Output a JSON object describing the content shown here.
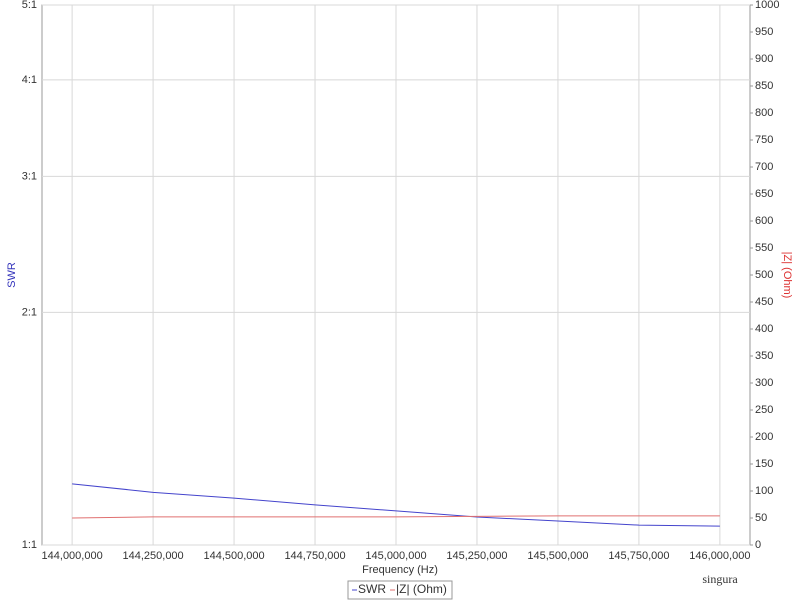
{
  "chart_data": {
    "type": "line",
    "x_label": "Frequency (Hz)",
    "y_label": "SWR",
    "y2_label": "|Z| (Ohm)",
    "x": [
      144000000,
      144250000,
      144500000,
      144750000,
      145000000,
      145250000,
      145500000,
      145750000,
      146000000
    ],
    "xlim": [
      143907000,
      146093000
    ],
    "xticks": [
      {
        "value": 144000000,
        "label": "144,000,000"
      },
      {
        "value": 144250000,
        "label": "144,250,000"
      },
      {
        "value": 144500000,
        "label": "144,500,000"
      },
      {
        "value": 144750000,
        "label": "144,750,000"
      },
      {
        "value": 145000000,
        "label": "145,000,000"
      },
      {
        "value": 145250000,
        "label": "145,250,000"
      },
      {
        "value": 145500000,
        "label": "145,500,000"
      },
      {
        "value": 145750000,
        "label": "145,750,000"
      },
      {
        "value": 146000000,
        "label": "146,000,000"
      }
    ],
    "ylim": [
      1,
      5
    ],
    "ylog": true,
    "yticks": [
      {
        "value": 1,
        "label": "1:1"
      },
      {
        "value": 2,
        "label": "2:1"
      },
      {
        "value": 3,
        "label": "3:1"
      },
      {
        "value": 4,
        "label": "4:1"
      },
      {
        "value": 5,
        "label": "5:1"
      }
    ],
    "y2lim": [
      0,
      1000
    ],
    "y2ticks": [
      0,
      50,
      100,
      150,
      200,
      250,
      300,
      350,
      400,
      450,
      500,
      550,
      600,
      650,
      700,
      750,
      800,
      850,
      900,
      950,
      1000
    ],
    "grid": true,
    "y_label_color": "#3333bb",
    "y2_label_color": "#dd3333",
    "series": [
      {
        "name": "SWR",
        "color": "#4444cc",
        "values": [
          1.2,
          1.17,
          1.15,
          1.127,
          1.107,
          1.087,
          1.074,
          1.061,
          1.058
        ]
      },
      {
        "name": "|Z| (Ohm)",
        "color": "#e07070",
        "axis": "y2",
        "values": [
          50,
          52,
          52,
          52,
          52,
          53,
          54,
          54,
          54
        ]
      }
    ],
    "signature": "singura"
  }
}
